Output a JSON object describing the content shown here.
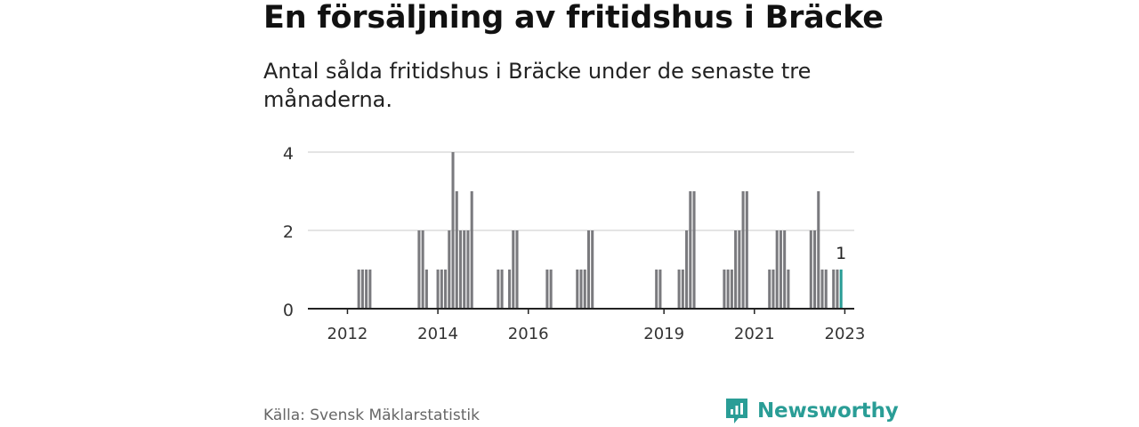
{
  "header": {
    "title": "En försäljning av fritidshus i Bräcke",
    "subtitle": "Antal sålda fritidshus i Bräcke under de senaste tre månaderna."
  },
  "footer": {
    "source": "Källa: Svensk Mäklarstatistik",
    "brand": "Newsworthy",
    "brand_icon": "bar-chart-logo-icon",
    "brand_color": "#2a9d96"
  },
  "colors": {
    "bar": "#7a7a7e",
    "highlight": "#2a9d96",
    "grid": "#d4d4d4",
    "axis": "#222222"
  },
  "chart_data": {
    "type": "bar",
    "title": "En försäljning av fritidshus i Bräcke",
    "subtitle": "Antal sålda fritidshus i Bräcke under de senaste tre månaderna.",
    "ylim": [
      0,
      4
    ],
    "yticks": [
      0,
      2,
      4
    ],
    "xticks": [
      "2012",
      "2014",
      "2016",
      "2019",
      "2021",
      "2023"
    ],
    "grid": true,
    "highlight_label": "1",
    "categories": [
      "2012-04",
      "2012-05",
      "2012-06",
      "2012-07",
      "2013-08",
      "2013-09",
      "2013-10",
      "2014-01",
      "2014-02",
      "2014-03",
      "2014-04",
      "2014-05",
      "2014-06",
      "2014-07",
      "2014-08",
      "2014-09",
      "2014-10",
      "2015-05",
      "2015-06",
      "2015-08",
      "2015-09",
      "2015-10",
      "2016-06",
      "2016-07",
      "2017-02",
      "2017-03",
      "2017-04",
      "2017-05",
      "2017-06",
      "2018-11",
      "2018-12",
      "2019-05",
      "2019-06",
      "2019-07",
      "2019-08",
      "2019-09",
      "2020-05",
      "2020-06",
      "2020-07",
      "2020-08",
      "2020-09",
      "2020-10",
      "2020-11",
      "2021-05",
      "2021-06",
      "2021-07",
      "2021-08",
      "2021-09",
      "2021-10",
      "2022-04",
      "2022-05",
      "2022-06",
      "2022-07",
      "2022-08",
      "2022-10",
      "2022-11",
      "2022-12"
    ],
    "values": [
      1,
      1,
      1,
      1,
      2,
      2,
      1,
      1,
      1,
      1,
      2,
      4,
      3,
      2,
      2,
      2,
      3,
      1,
      1,
      1,
      2,
      2,
      1,
      1,
      1,
      1,
      1,
      2,
      2,
      1,
      1,
      1,
      1,
      2,
      3,
      3,
      1,
      1,
      1,
      2,
      2,
      3,
      3,
      1,
      1,
      2,
      2,
      2,
      1,
      2,
      2,
      3,
      1,
      1,
      1,
      1,
      1
    ],
    "highlight_index": 56
  }
}
